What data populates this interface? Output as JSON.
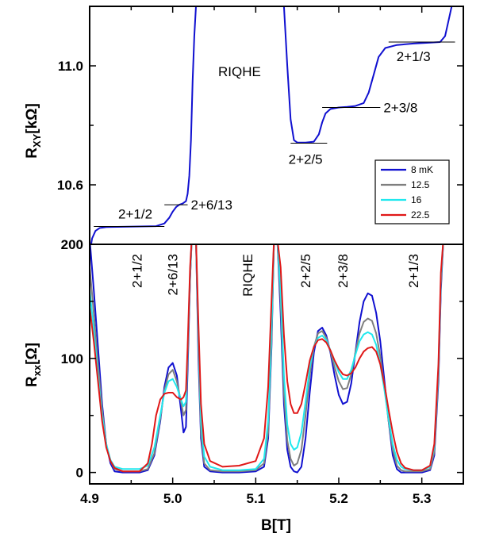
{
  "chart_data": [
    {
      "type": "line",
      "panel": "top",
      "ylabel_main": "R",
      "ylabel_sub": "XY",
      "ylabel_unit": "[kΩ]",
      "xlim": [
        4.9,
        5.35
      ],
      "ylim": [
        10.4,
        11.2
      ],
      "yticks": [
        {
          "value": 10.6,
          "label": "10.6"
        },
        {
          "value": 11.0,
          "label": "11.0"
        }
      ],
      "annotation_center": "RIQHE",
      "plateau_labels": [
        {
          "text": "2+1/2",
          "x": 4.955,
          "y": 10.46,
          "line_x": [
            4.905,
            4.99
          ]
        },
        {
          "text": "2+6/13",
          "x": 5.035,
          "y": 10.52,
          "line_x": [
            4.99,
            5.018
          ],
          "line_y": 10.533
        },
        {
          "text": "2+2/5",
          "x": 5.16,
          "y": 10.68,
          "line_x": [
            5.142,
            5.186
          ],
          "line_y": 10.74
        },
        {
          "text": "2+3/8",
          "x": 5.225,
          "y": 10.84,
          "line_x": [
            5.18,
            5.25
          ],
          "line_y": 10.86
        },
        {
          "text": "2+1/3",
          "x": 5.29,
          "y": 11.02,
          "line_x": [
            5.26,
            5.34
          ],
          "line_y": 11.08
        }
      ],
      "series": [
        {
          "name": "8 mK",
          "color": "#1010d0",
          "x": [
            4.9,
            4.903,
            4.907,
            4.912,
            4.92,
            4.94,
            4.96,
            4.98,
            4.99,
            4.996,
            5.0,
            5.004,
            5.008,
            5.012,
            5.016,
            5.018,
            5.02,
            5.022,
            5.024,
            5.026,
            5.028
          ],
          "y": [
            10.37,
            10.42,
            10.445,
            10.455,
            10.458,
            10.459,
            10.46,
            10.461,
            10.47,
            10.49,
            10.51,
            10.525,
            10.533,
            10.537,
            10.545,
            10.57,
            10.63,
            10.75,
            10.95,
            11.1,
            11.2
          ]
        },
        {
          "name": "8 mK",
          "color": "#1010d0",
          "x": [
            5.134,
            5.138,
            5.142,
            5.146,
            5.15,
            5.16,
            5.17,
            5.176,
            5.18,
            5.184,
            5.19,
            5.2,
            5.21,
            5.22,
            5.23,
            5.236,
            5.242,
            5.248,
            5.256,
            5.27,
            5.29,
            5.31,
            5.322,
            5.328,
            5.332,
            5.336
          ],
          "y": [
            11.2,
            11.0,
            10.82,
            10.75,
            10.742,
            10.742,
            10.745,
            10.77,
            10.81,
            10.84,
            10.855,
            10.86,
            10.862,
            10.865,
            10.875,
            10.91,
            10.97,
            11.03,
            11.06,
            11.07,
            11.075,
            11.078,
            11.08,
            11.1,
            11.15,
            11.2
          ]
        }
      ]
    },
    {
      "type": "line",
      "panel": "bottom",
      "xlabel": "B[T]",
      "ylabel_main": "R",
      "ylabel_sub": "xx",
      "ylabel_unit": "[Ω]",
      "xlim": [
        4.9,
        5.35
      ],
      "ylim": [
        -10,
        200
      ],
      "yticks": [
        {
          "value": 0,
          "label": "0"
        },
        {
          "value": 100,
          "label": "100"
        },
        {
          "value": 200,
          "label": "200"
        }
      ],
      "xticks": [
        {
          "value": 4.9,
          "label": "4.9"
        },
        {
          "value": 5.0,
          "label": "5.0"
        },
        {
          "value": 5.1,
          "label": "5.1"
        },
        {
          "value": 5.2,
          "label": "5.2"
        },
        {
          "value": 5.3,
          "label": "5.3"
        }
      ],
      "vertical_labels": [
        {
          "text": "2+1/2",
          "x": 4.957
        },
        {
          "text": "2+6/13",
          "x": 5.0
        },
        {
          "text": "RIQHE",
          "x": 5.09
        },
        {
          "text": "2+2/5",
          "x": 5.16
        },
        {
          "text": "2+3/8",
          "x": 5.205
        },
        {
          "text": "2+1/3",
          "x": 5.29
        }
      ],
      "legend": {
        "placement": "right, straddling panels",
        "entries": [
          {
            "name": "8  mK",
            "color": "#1010d0"
          },
          {
            "name": "12.5",
            "color": "#7f7f7f"
          },
          {
            "name": "16",
            "color": "#20e8ee"
          },
          {
            "name": "22.5",
            "color": "#e01818"
          }
        ]
      },
      "series": [
        {
          "name": "8 mK",
          "color": "#1010d0",
          "segments": [
            {
              "x": [
                4.9,
                4.905,
                4.91,
                4.915,
                4.92,
                4.925,
                4.93,
                4.94,
                4.96,
                4.97,
                4.978,
                4.985,
                4.99,
                4.995,
                5.0,
                5.005,
                5.01,
                5.013,
                5.016,
                5.018,
                5.021,
                5.023
              ],
              "y": [
                205,
                160,
                110,
                60,
                25,
                8,
                1,
                0,
                0,
                2,
                15,
                45,
                75,
                92,
                96,
                85,
                55,
                35,
                40,
                90,
                170,
                205
              ]
            },
            {
              "x": [
                5.028,
                5.031,
                5.034,
                5.038,
                5.045,
                5.06,
                5.08,
                5.1,
                5.11,
                5.115,
                5.119,
                5.122
              ],
              "y": [
                205,
                100,
                30,
                5,
                1,
                0,
                0,
                1,
                5,
                30,
                110,
                205
              ]
            },
            {
              "x": [
                5.126,
                5.13,
                5.134,
                5.138,
                5.142,
                5.146,
                5.15,
                5.155,
                5.16,
                5.165,
                5.17,
                5.175,
                5.18,
                5.185,
                5.19,
                5.195,
                5.2,
                5.205,
                5.21,
                5.215,
                5.22,
                5.225,
                5.23,
                5.235,
                5.24,
                5.245,
                5.25,
                5.255,
                5.26,
                5.265,
                5.27,
                5.275,
                5.28,
                5.29,
                5.3,
                5.31,
                5.315,
                5.32,
                5.323,
                5.326
              ],
              "y": [
                205,
                140,
                60,
                20,
                5,
                1,
                0,
                5,
                30,
                70,
                105,
                124,
                127,
                120,
                105,
                85,
                68,
                60,
                62,
                78,
                105,
                132,
                150,
                157,
                155,
                140,
                115,
                80,
                45,
                15,
                3,
                0,
                0,
                0,
                0,
                2,
                15,
                80,
                160,
                205
              ]
            }
          ]
        },
        {
          "name": "12.5",
          "color": "#7f7f7f",
          "segments": [
            {
              "x": [
                4.9,
                4.905,
                4.91,
                4.915,
                4.92,
                4.925,
                4.93,
                4.94,
                4.96,
                4.97,
                4.978,
                4.985,
                4.99,
                4.995,
                5.0,
                5.005,
                5.01,
                5.013,
                5.016,
                5.018,
                5.021,
                5.023
              ],
              "y": [
                180,
                140,
                95,
                55,
                25,
                10,
                3,
                1,
                1,
                3,
                17,
                47,
                72,
                86,
                90,
                80,
                62,
                50,
                55,
                100,
                170,
                205
              ]
            },
            {
              "x": [
                5.028,
                5.031,
                5.034,
                5.038,
                5.045,
                5.06,
                5.08,
                5.1,
                5.11,
                5.115,
                5.119,
                5.122
              ],
              "y": [
                205,
                110,
                35,
                8,
                2,
                1,
                1,
                2,
                8,
                35,
                115,
                205
              ]
            },
            {
              "x": [
                5.126,
                5.13,
                5.134,
                5.138,
                5.142,
                5.146,
                5.15,
                5.155,
                5.16,
                5.165,
                5.17,
                5.175,
                5.18,
                5.185,
                5.19,
                5.195,
                5.2,
                5.205,
                5.21,
                5.215,
                5.22,
                5.225,
                5.23,
                5.235,
                5.24,
                5.245,
                5.25,
                5.255,
                5.26,
                5.265,
                5.27,
                5.275,
                5.28,
                5.29,
                5.3,
                5.31,
                5.315,
                5.32,
                5.323,
                5.326
              ],
              "y": [
                205,
                150,
                70,
                28,
                12,
                6,
                8,
                20,
                50,
                85,
                110,
                122,
                124,
                118,
                106,
                92,
                80,
                73,
                74,
                86,
                105,
                122,
                132,
                135,
                133,
                122,
                102,
                75,
                45,
                20,
                6,
                2,
                1,
                1,
                1,
                3,
                18,
                85,
                165,
                205
              ]
            }
          ]
        },
        {
          "name": "16",
          "color": "#20e8ee",
          "segments": [
            {
              "x": [
                4.9,
                4.905,
                4.91,
                4.915,
                4.92,
                4.925,
                4.93,
                4.94,
                4.96,
                4.97,
                4.978,
                4.985,
                4.99,
                4.995,
                5.0,
                5.005,
                5.01,
                5.013,
                5.016,
                5.018,
                5.021,
                5.023
              ],
              "y": [
                160,
                125,
                85,
                50,
                25,
                11,
                5,
                3,
                3,
                6,
                22,
                50,
                70,
                80,
                82,
                75,
                64,
                58,
                62,
                105,
                175,
                205
              ]
            },
            {
              "x": [
                5.028,
                5.031,
                5.034,
                5.038,
                5.045,
                5.06,
                5.08,
                5.1,
                5.11,
                5.115,
                5.119,
                5.122
              ],
              "y": [
                205,
                120,
                45,
                14,
                5,
                2,
                2,
                3,
                12,
                45,
                125,
                205
              ]
            },
            {
              "x": [
                5.126,
                5.13,
                5.134,
                5.138,
                5.142,
                5.146,
                5.15,
                5.155,
                5.16,
                5.165,
                5.17,
                5.175,
                5.18,
                5.185,
                5.19,
                5.195,
                5.2,
                5.205,
                5.21,
                5.215,
                5.22,
                5.225,
                5.23,
                5.235,
                5.24,
                5.245,
                5.25,
                5.255,
                5.26,
                5.265,
                5.27,
                5.275,
                5.28,
                5.29,
                5.3,
                5.31,
                5.315,
                5.32,
                5.323,
                5.326
              ],
              "y": [
                205,
                160,
                85,
                42,
                25,
                20,
                22,
                35,
                62,
                92,
                110,
                118,
                120,
                116,
                107,
                97,
                88,
                82,
                82,
                90,
                103,
                115,
                121,
                123,
                121,
                112,
                95,
                72,
                47,
                25,
                11,
                5,
                3,
                2,
                2,
                5,
                22,
                90,
                170,
                205
              ]
            }
          ]
        },
        {
          "name": "22.5",
          "color": "#e01818",
          "segments": [
            {
              "x": [
                4.9,
                4.905,
                4.91,
                4.915,
                4.92,
                4.925,
                4.93,
                4.94,
                4.96,
                4.97,
                4.975,
                4.98,
                4.985,
                4.99,
                4.995,
                5.0,
                5.005,
                5.01,
                5.013,
                5.016,
                5.018,
                5.021,
                5.023
              ],
              "y": [
                145,
                115,
                80,
                45,
                22,
                10,
                4,
                1,
                1,
                8,
                25,
                50,
                64,
                69,
                70,
                70,
                66,
                64,
                66,
                72,
                110,
                180,
                205
              ]
            },
            {
              "x": [
                5.028,
                5.031,
                5.034,
                5.038,
                5.045,
                5.06,
                5.08,
                5.1,
                5.11,
                5.115,
                5.119,
                5.122
              ],
              "y": [
                205,
                130,
                60,
                25,
                10,
                5,
                6,
                10,
                30,
                75,
                150,
                205
              ]
            },
            {
              "x": [
                5.126,
                5.13,
                5.134,
                5.138,
                5.142,
                5.146,
                5.15,
                5.155,
                5.16,
                5.165,
                5.17,
                5.175,
                5.18,
                5.185,
                5.19,
                5.195,
                5.2,
                5.205,
                5.21,
                5.215,
                5.22,
                5.225,
                5.23,
                5.235,
                5.24,
                5.245,
                5.25,
                5.255,
                5.26,
                5.265,
                5.27,
                5.275,
                5.28,
                5.29,
                5.3,
                5.31,
                5.315,
                5.32,
                5.323,
                5.326
              ],
              "y": [
                205,
                180,
                120,
                80,
                60,
                52,
                52,
                60,
                78,
                98,
                110,
                116,
                117,
                114,
                107,
                98,
                91,
                86,
                85,
                87,
                92,
                100,
                106,
                109,
                110,
                106,
                95,
                77,
                55,
                35,
                18,
                8,
                4,
                2,
                2,
                6,
                25,
                95,
                175,
                205
              ]
            }
          ]
        }
      ]
    }
  ]
}
